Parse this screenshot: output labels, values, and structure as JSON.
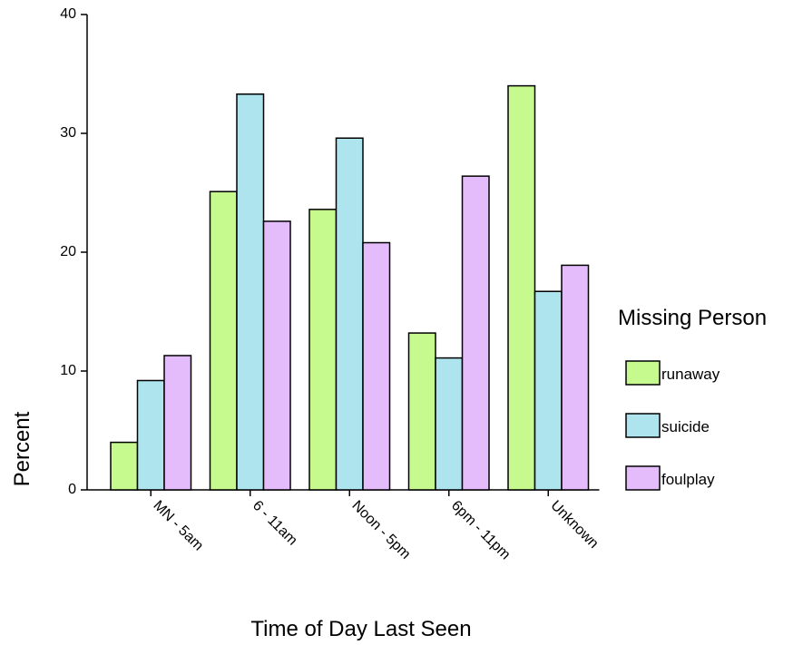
{
  "chart_data": {
    "type": "bar",
    "title": "",
    "xlabel": "Time of Day Last Seen",
    "ylabel": "Percent",
    "ylim": [
      0,
      40
    ],
    "yticks": [
      0,
      10,
      20,
      30,
      40
    ],
    "categories": [
      "MN - 5am",
      "6 - 11am",
      "Noon - 5pm",
      "6pm - 11pm",
      "Unknown"
    ],
    "series": [
      {
        "name": "runaway",
        "color": "#c7fa8e",
        "values": [
          4.0,
          25.1,
          23.6,
          13.2,
          34.0
        ]
      },
      {
        "name": "suicide",
        "color": "#ade4ee",
        "values": [
          9.2,
          33.3,
          29.6,
          11.1,
          16.7
        ]
      },
      {
        "name": "foulplay",
        "color": "#e5bcfb",
        "values": [
          11.3,
          22.6,
          20.8,
          26.4,
          18.9
        ]
      }
    ],
    "legend": {
      "title": "Missing Person",
      "position": "right"
    },
    "grid": false
  }
}
